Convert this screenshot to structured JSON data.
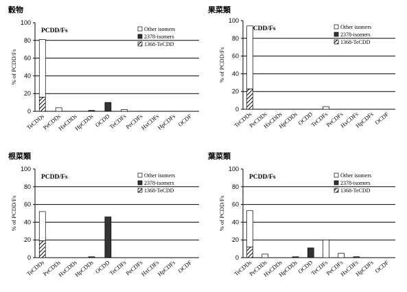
{
  "colors": {
    "other": "#ffffff",
    "isomer2378": "#333333",
    "tecdd1368": "hatched",
    "grid": "#000000"
  },
  "legend": [
    "Other isomers",
    "2378-isomers",
    "1368-TeCDD"
  ],
  "chart_data": [
    {
      "type": "bar",
      "stacked": true,
      "title": "穀物",
      "subtitle": "PCDD/Fs",
      "ylabel": "% of PCDD/Fs",
      "ylim": [
        0,
        100
      ],
      "yticks": [
        0,
        20,
        40,
        60,
        80,
        100
      ],
      "gridlines": [
        20,
        40,
        60,
        80
      ],
      "legend_position": "top-right",
      "categories": [
        "TeCDDs",
        "PeCDDs",
        "HxCDDs",
        "HpCDDs",
        "OCDD",
        "TeCDFs",
        "PeCDFs",
        "HxCDFs",
        "HpCDFs",
        "OCDF"
      ],
      "series": [
        {
          "name": "1368-TeCDD",
          "values": [
            16,
            0,
            0,
            0,
            0,
            0,
            0,
            0,
            0,
            0
          ]
        },
        {
          "name": "2378-isomers",
          "values": [
            0,
            0,
            0,
            1,
            10,
            0,
            0,
            0,
            0,
            0
          ]
        },
        {
          "name": "Other isomers",
          "values": [
            65,
            4,
            0,
            0,
            0,
            2,
            0,
            0,
            0,
            0
          ]
        }
      ]
    },
    {
      "type": "bar",
      "stacked": true,
      "title": "果菜類",
      "subtitle": "PCDD/Fs",
      "ylabel": "% of PCDD/Fs",
      "ylim": [
        0,
        100
      ],
      "yticks": [
        0,
        20,
        40,
        60,
        80,
        100
      ],
      "gridlines": [
        20,
        40,
        60,
        80
      ],
      "legend_position": "top-right",
      "categories": [
        "TeCDDs",
        "PeCDDs",
        "HxCDDs",
        "HpCDDs",
        "OCDD",
        "TeCDFs",
        "PeCDFs",
        "HxCDFs",
        "HpCDFs",
        "OCDF"
      ],
      "series": [
        {
          "name": "1368-TeCDD",
          "values": [
            23,
            0,
            0,
            0,
            0,
            0,
            0,
            0,
            0,
            0
          ]
        },
        {
          "name": "2378-isomers",
          "values": [
            0,
            0,
            0,
            0,
            0,
            0,
            0,
            0,
            0,
            0
          ]
        },
        {
          "name": "Other isomers",
          "values": [
            71,
            0,
            0,
            0,
            0,
            3,
            0,
            0,
            0,
            0
          ]
        }
      ]
    },
    {
      "type": "bar",
      "stacked": true,
      "title": "根菜類",
      "subtitle": "PCDD/Fs",
      "ylabel": "% of PCDD/Fs",
      "ylim": [
        0,
        100
      ],
      "yticks": [
        0,
        20,
        40,
        60,
        80,
        100
      ],
      "gridlines": [
        20,
        40,
        60,
        80
      ],
      "legend_position": "top-right",
      "categories": [
        "TeCDDs",
        "PeCDDs",
        "HxCDDs",
        "HpCDDs",
        "OCDD",
        "TeCDFs",
        "PeCDFs",
        "HxCDFs",
        "HpCDFs",
        "OCDF"
      ],
      "series": [
        {
          "name": "1368-TeCDD",
          "values": [
            19,
            0,
            0,
            0,
            0,
            0,
            0,
            0,
            0,
            0
          ]
        },
        {
          "name": "2378-isomers",
          "values": [
            0,
            0,
            0,
            1,
            46,
            0,
            0,
            0,
            0,
            0
          ]
        },
        {
          "name": "Other isomers",
          "values": [
            33,
            0,
            0,
            0,
            0,
            0,
            0,
            0,
            0,
            0
          ]
        }
      ]
    },
    {
      "type": "bar",
      "stacked": true,
      "title": "葉菜類",
      "subtitle": "PCDD/Fs",
      "ylabel": "% of PCDD/Fs",
      "ylim": [
        0,
        100
      ],
      "yticks": [
        0,
        20,
        40,
        60,
        80,
        100
      ],
      "gridlines": [
        20,
        40,
        60,
        80
      ],
      "legend_position": "top-right",
      "categories": [
        "TeCDDs",
        "PeCDDs",
        "HxCDDs",
        "HpCDDs",
        "OCDD",
        "TeCDFs",
        "PeCDFs",
        "HxCDFs",
        "HpCDFs",
        "OCDF"
      ],
      "series": [
        {
          "name": "1368-TeCDD",
          "values": [
            12,
            0,
            0,
            0,
            0,
            0,
            0,
            0,
            0,
            0
          ]
        },
        {
          "name": "2378-isomers",
          "values": [
            0,
            0,
            0,
            1,
            11,
            0,
            0,
            1,
            0,
            0
          ]
        },
        {
          "name": "Other isomers",
          "values": [
            41,
            4,
            0,
            0,
            0,
            20,
            5,
            0,
            0,
            0
          ]
        }
      ]
    }
  ]
}
